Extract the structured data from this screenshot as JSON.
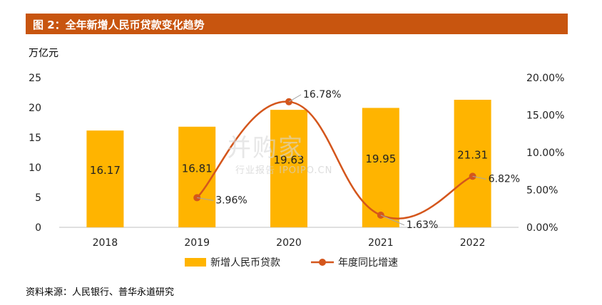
{
  "header": {
    "title": "图 2：全年新增人民币贷款变化趋势"
  },
  "unit_label": "万亿元",
  "source": "资料来源：人民银行、普华永道研究",
  "watermark": {
    "main": "并购家",
    "sub": "行业报告 IPOIPO.CN"
  },
  "colors": {
    "bar": "#ffb400",
    "line": "#d4561c",
    "header": "#c8550f"
  },
  "chart_data": {
    "type": "bar",
    "categories": [
      "2018",
      "2019",
      "2020",
      "2021",
      "2022"
    ],
    "series": [
      {
        "name": "新增人民币贷款",
        "type": "bar",
        "axis": "left",
        "values": [
          16.17,
          16.81,
          19.63,
          19.95,
          21.31
        ],
        "labels": [
          "16.17",
          "16.81",
          "19.63",
          "19.95",
          "21.31"
        ]
      },
      {
        "name": "年度同比增速",
        "type": "line",
        "axis": "right",
        "x": [
          "2019",
          "2020",
          "2021",
          "2022"
        ],
        "values": [
          3.96,
          16.78,
          1.63,
          6.82
        ],
        "labels": [
          "3.96%",
          "16.78%",
          "1.63%",
          "6.82%"
        ]
      }
    ],
    "ylim": [
      0,
      25
    ],
    "y_ticks": [
      "0",
      "5",
      "10",
      "15",
      "20",
      "25"
    ],
    "y2lim": [
      0,
      20
    ],
    "y2_ticks": [
      "0.00%",
      "5.00%",
      "10.00%",
      "15.00%",
      "20.00%"
    ],
    "legend_position": "bottom",
    "grid": false
  }
}
